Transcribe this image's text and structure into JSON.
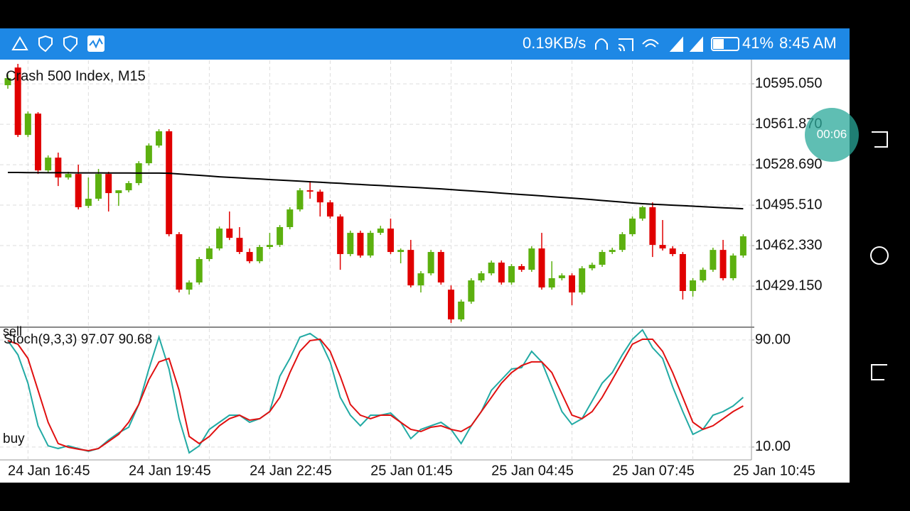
{
  "status_bar": {
    "speed": "0.19KB/s",
    "battery": "41%",
    "time": "8:45 AM"
  },
  "recorder": {
    "time": "00:06"
  },
  "chart_data": [
    {
      "type": "candlestick",
      "title": "Crash 500 Index, M15",
      "categories": [
        "24 Jan 16:45",
        null,
        null,
        null,
        null,
        null,
        null,
        null,
        null,
        null,
        null,
        null,
        "24 Jan 19:45",
        null,
        null,
        null,
        null,
        null,
        null,
        null,
        null,
        null,
        null,
        null,
        "24 Jan 22:45",
        null,
        null,
        null,
        null,
        null,
        null,
        null,
        null,
        null,
        null,
        null,
        "25 Jan 01:45",
        null,
        null,
        null,
        null,
        null,
        null,
        null,
        null,
        null,
        null,
        null,
        "25 Jan 04:45",
        null,
        null,
        null,
        null,
        null,
        null,
        null,
        null,
        null,
        null,
        null,
        "25 Jan 07:45",
        null,
        null,
        null,
        null,
        null,
        null,
        null,
        null,
        null,
        null,
        null,
        "25 Jan 10:45",
        null
      ],
      "open": [
        10593.9,
        10608.4,
        10553.1,
        10570.6,
        10524.0,
        10534.5,
        10518.2,
        10521.1,
        10494.9,
        10500.8,
        10521.1,
        10505.4,
        10507.7,
        10513.6,
        10529.9,
        10544.4,
        10556.1,
        10471.7,
        10426.2,
        10432.1,
        10451.3,
        10460.0,
        10476.3,
        10468.7,
        10457.1,
        10449.5,
        10461.2,
        10462.9,
        10477.5,
        10492.0,
        10507.7,
        10506.6,
        10497.8,
        10486.2,
        10455.4,
        10472.8,
        10454.2,
        10472.8,
        10476.3,
        10457.1,
        10458.8,
        10429.7,
        10439.6,
        10457.1,
        10426.2,
        10401.8,
        10416.4,
        10433.8,
        10439.6,
        10448.4,
        10432.1,
        10445.5,
        10442.5,
        10460.0,
        10428.0,
        10435.6,
        10437.9,
        10423.9,
        10443.7,
        10446.6,
        10457.1,
        10458.8,
        10471.7,
        10484.5,
        10493.8,
        10462.9,
        10460.0,
        10455.4,
        10425.1,
        10433.8,
        10442.5,
        10458.8,
        10435.6,
        10454.2
      ],
      "high": [
        10602.6,
        10611.4,
        10572.4,
        10571.8,
        10536.3,
        10538.6,
        10522.9,
        10528.7,
        10518.2,
        10525.2,
        10522.9,
        10507.7,
        10515.3,
        10531.6,
        10546.2,
        10557.8,
        10557.8,
        10473.4,
        10433.8,
        10453.0,
        10461.8,
        10478.0,
        10490.3,
        10477.5,
        10460.0,
        10462.9,
        10472.8,
        10479.2,
        10493.8,
        10509.5,
        10515.3,
        10508.3,
        10499.6,
        10488.0,
        10474.6,
        10474.6,
        10474.6,
        10478.6,
        10484.5,
        10460.0,
        10467.0,
        10441.4,
        10458.8,
        10458.8,
        10429.7,
        10418.1,
        10435.6,
        10441.4,
        10450.1,
        10450.1,
        10447.2,
        10447.2,
        10461.8,
        10472.8,
        10449.5,
        10439.6,
        10439.6,
        10445.5,
        10448.4,
        10458.8,
        10460.6,
        10473.4,
        10486.2,
        10494.9,
        10497.8,
        10483.3,
        10461.8,
        10457.1,
        10435.6,
        10444.3,
        10460.6,
        10467.0,
        10455.9,
        10471.7
      ],
      "low": [
        10591.0,
        10551.4,
        10551.4,
        10521.1,
        10522.3,
        10511.2,
        10516.5,
        10492.0,
        10493.2,
        10499.0,
        10490.3,
        10494.9,
        10506.0,
        10511.8,
        10528.1,
        10542.7,
        10469.9,
        10423.9,
        10422.2,
        10430.3,
        10449.5,
        10458.3,
        10466.9,
        10455.4,
        10447.8,
        10447.8,
        10459.4,
        10461.2,
        10475.7,
        10490.3,
        10500.8,
        10486.2,
        10484.5,
        10442.5,
        10453.6,
        10452.4,
        10452.4,
        10471.1,
        10455.4,
        10447.8,
        10428.0,
        10423.9,
        10437.9,
        10430.3,
        10398.9,
        10400.0,
        10414.6,
        10432.1,
        10437.9,
        10430.3,
        10430.3,
        10440.8,
        10440.8,
        10426.2,
        10426.2,
        10433.8,
        10413.4,
        10422.2,
        10442.0,
        10444.9,
        10455.4,
        10457.1,
        10469.9,
        10482.7,
        10453.0,
        10458.3,
        10453.6,
        10418.1,
        10420.5,
        10432.1,
        10440.8,
        10433.8,
        10433.8,
        10452.4
      ],
      "close": [
        10599.7,
        10553.1,
        10570.6,
        10524.0,
        10534.5,
        10518.2,
        10521.1,
        10493.8,
        10500.8,
        10521.1,
        10505.4,
        10507.7,
        10513.6,
        10529.9,
        10544.4,
        10556.1,
        10471.7,
        10426.2,
        10432.1,
        10451.3,
        10460.0,
        10476.3,
        10468.7,
        10457.1,
        10449.5,
        10461.2,
        10462.9,
        10477.5,
        10492.0,
        10507.7,
        10506.6,
        10497.8,
        10486.2,
        10455.4,
        10472.8,
        10454.2,
        10472.8,
        10476.3,
        10457.1,
        10458.8,
        10429.7,
        10439.6,
        10457.1,
        10432.1,
        10401.8,
        10416.4,
        10433.8,
        10439.6,
        10448.4,
        10432.1,
        10445.5,
        10442.5,
        10460.0,
        10428.0,
        10435.6,
        10437.9,
        10423.9,
        10443.7,
        10446.6,
        10457.1,
        10458.8,
        10471.7,
        10484.5,
        10493.8,
        10462.9,
        10460.0,
        10455.4,
        10425.1,
        10433.8,
        10442.5,
        10458.8,
        10435.6,
        10454.2,
        10470.0
      ],
      "up_color": "#5cb00f",
      "down_color": "#e00000",
      "overlay": {
        "color": "#000000",
        "values": [
          10522.3,
          10522.3,
          10522.2,
          10522.2,
          10522.1,
          10522.1,
          10522.1,
          10522.0,
          10522.0,
          10522.0,
          10521.9,
          10521.9,
          10521.9,
          10521.8,
          10521.8,
          10521.8,
          10521.7,
          10521.1,
          10520.5,
          10520.0,
          10519.4,
          10518.8,
          10518.3,
          10517.9,
          10517.4,
          10517.0,
          10516.5,
          10516.1,
          10515.6,
          10515.2,
          10514.7,
          10514.3,
          10513.8,
          10513.4,
          10512.9,
          10512.5,
          10512.0,
          10511.6,
          10511.1,
          10510.7,
          10510.2,
          10509.8,
          10509.3,
          10508.9,
          10508.3,
          10507.7,
          10507.2,
          10506.6,
          10506.0,
          10505.4,
          10504.8,
          10504.2,
          10503.7,
          10503.1,
          10502.5,
          10501.9,
          10501.3,
          10500.7,
          10500.0,
          10499.3,
          10498.7,
          10498.0,
          10497.3,
          10496.7,
          10496.3,
          10495.9,
          10495.5,
          10495.1,
          10494.7,
          10494.2,
          10493.8,
          10493.4,
          10493.0,
          10492.6
        ]
      },
      "ylim": [
        10396.0,
        10614.3
      ],
      "yticks": [
        {
          "value": 10595.05,
          "label": "10595.050"
        },
        {
          "value": 10561.87,
          "label": "10561.870"
        },
        {
          "value": 10528.69,
          "label": "10528.690"
        },
        {
          "value": 10495.51,
          "label": "10495.510"
        },
        {
          "value": 10462.33,
          "label": "10462.330"
        },
        {
          "value": 10429.15,
          "label": "10429.150"
        }
      ],
      "grid": true
    },
    {
      "type": "line",
      "title": "Stoch(9,3,3) 97.07 90.68",
      "annotations": [
        "sell",
        "buy"
      ],
      "series": [
        {
          "color": "#22aaa4",
          "values": [
            89.5,
            78.9,
            57.7,
            25.9,
            10.9,
            8.9,
            10.9,
            8.9,
            6.8,
            8.9,
            15.3,
            20.6,
            24.8,
            41.8,
            68.3,
            92.1,
            68.3,
            31.2,
            5.7,
            10.9,
            23.2,
            28.5,
            33.8,
            33.8,
            28.5,
            31.2,
            36.5,
            62.9,
            76.2,
            92.1,
            94.8,
            89.5,
            73.6,
            47.1,
            33.8,
            25.9,
            33.8,
            33.8,
            35.4,
            28.5,
            16.3,
            23.2,
            25.9,
            28.5,
            23.2,
            12.6,
            25.9,
            36.5,
            52.4,
            60.3,
            68.3,
            69.3,
            81.5,
            73.6,
            55.0,
            36.5,
            26.9,
            31.2,
            44.4,
            57.7,
            65.6,
            78.9,
            90.5,
            97.5,
            84.2,
            76.2,
            55.0,
            36.5,
            19.5,
            23.2,
            33.8,
            36.5,
            40.7,
            47.1
          ]
        },
        {
          "color": "#e01010",
          "values": [
            89.5,
            86.8,
            76.2,
            52.4,
            28.5,
            12.6,
            9.9,
            8.4,
            7.3,
            8.9,
            14.2,
            19.5,
            28.5,
            41.8,
            60.3,
            73.6,
            76.2,
            52.4,
            17.9,
            12.6,
            17.9,
            25.9,
            31.2,
            33.8,
            30.1,
            31.2,
            36.5,
            47.1,
            65.6,
            81.5,
            89.5,
            90.5,
            81.5,
            62.9,
            41.8,
            33.8,
            31.2,
            33.8,
            33.8,
            28.5,
            23.2,
            21.6,
            24.8,
            25.9,
            23.2,
            21.6,
            25.9,
            36.5,
            47.1,
            57.7,
            65.6,
            70.9,
            73.6,
            73.6,
            65.6,
            49.7,
            33.8,
            31.2,
            36.5,
            47.1,
            60.3,
            73.6,
            86.8,
            90.5,
            90.5,
            81.5,
            65.6,
            47.1,
            28.5,
            23.2,
            25.9,
            31.2,
            36.5,
            40.7
          ]
        }
      ],
      "ylim": [
        0.4,
        99.0
      ],
      "yticks": [
        {
          "value": 90,
          "label": "90.00"
        },
        {
          "value": 10,
          "label": "10.00"
        }
      ],
      "grid": true
    }
  ]
}
